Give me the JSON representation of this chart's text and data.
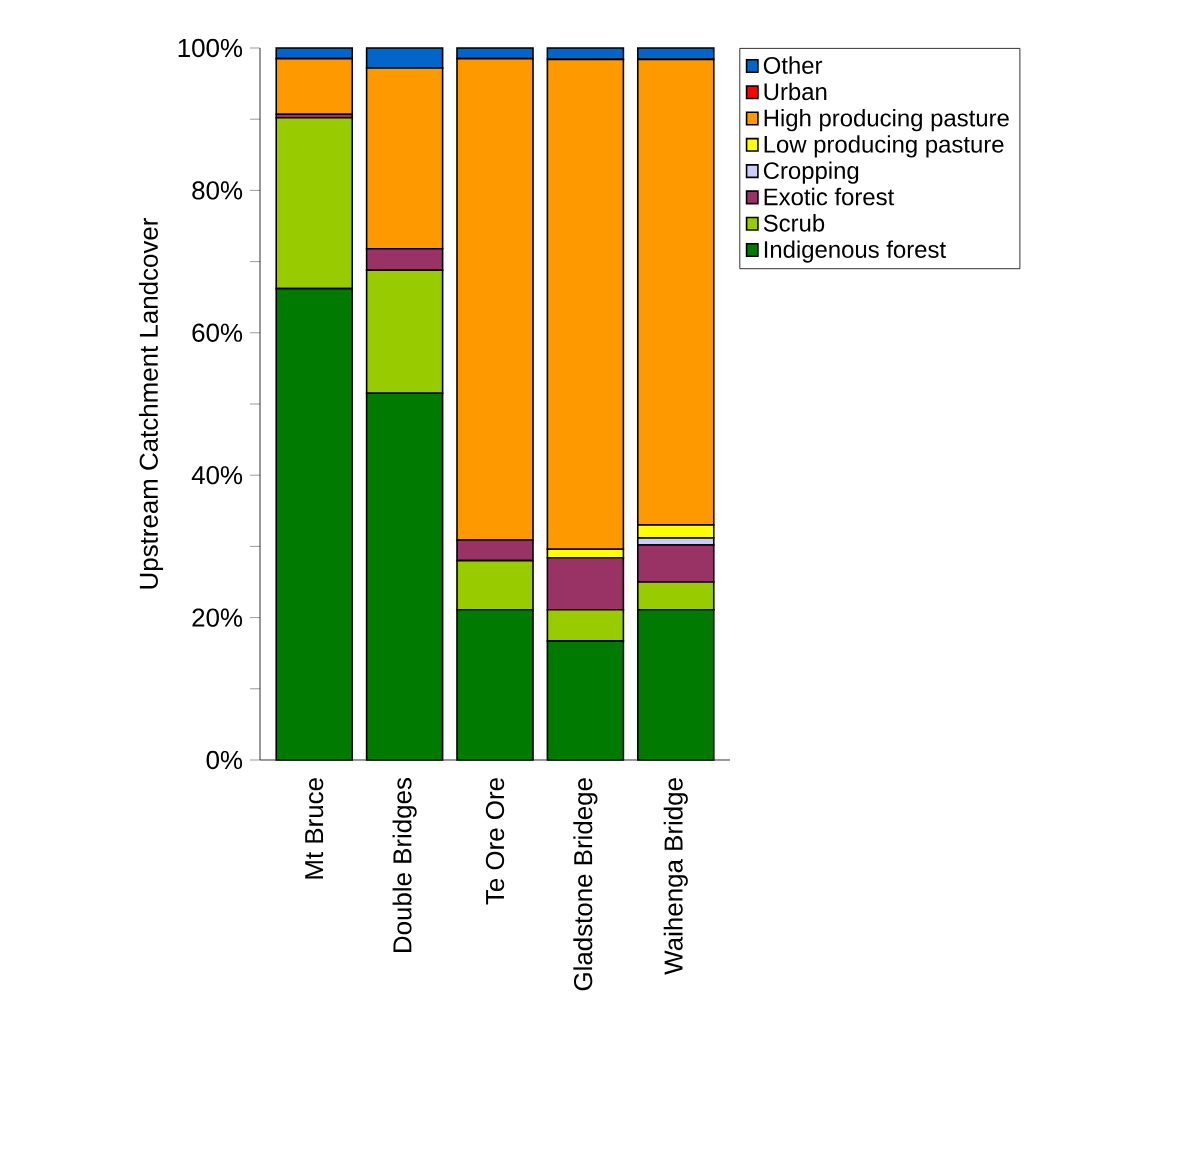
{
  "chart_data": {
    "type": "bar",
    "stacked": true,
    "ylabel": "Upstream Catchment Landcover",
    "categories": [
      "Mt Bruce",
      "Double Bridges",
      "Te Ore Ore",
      "Gladstone Bridege",
      "Waihenga Bridge"
    ],
    "series": [
      {
        "name": "Indigenous forest",
        "color": "#007a00",
        "values": [
          66.2,
          51.5,
          21.1,
          16.7,
          21.1
        ]
      },
      {
        "name": "Scrub",
        "color": "#99cc00",
        "values": [
          24.0,
          17.3,
          6.9,
          4.4,
          3.9
        ]
      },
      {
        "name": "Exotic forest",
        "color": "#993366",
        "values": [
          0.5,
          3.0,
          2.9,
          7.3,
          5.2
        ]
      },
      {
        "name": "Cropping",
        "color": "#ccccff",
        "values": [
          0,
          0,
          0,
          0,
          1.0
        ]
      },
      {
        "name": "Low producing pasture",
        "color": "#ffff00",
        "values": [
          0,
          0,
          0,
          1.2,
          1.8
        ]
      },
      {
        "name": "High producing pasture",
        "color": "#ff9900",
        "values": [
          7.8,
          25.4,
          67.6,
          68.8,
          65.4
        ]
      },
      {
        "name": "Urban",
        "color": "#ff0000",
        "values": [
          0,
          0,
          0,
          0,
          0
        ]
      },
      {
        "name": "Other",
        "color": "#0066cc",
        "values": [
          1.5,
          2.8,
          1.5,
          1.6,
          1.6
        ]
      }
    ],
    "ylim": [
      0,
      100
    ],
    "yticks": [
      {
        "value": 0,
        "label": "0%"
      },
      {
        "value": 10,
        "label": null
      },
      {
        "value": 20,
        "label": "20%"
      },
      {
        "value": 30,
        "label": null
      },
      {
        "value": 40,
        "label": "40%"
      },
      {
        "value": 50,
        "label": null
      },
      {
        "value": 60,
        "label": "60%"
      },
      {
        "value": 70,
        "label": null
      },
      {
        "value": 80,
        "label": "80%"
      },
      {
        "value": 90,
        "label": null
      },
      {
        "value": 100,
        "label": "100%"
      }
    ],
    "legend": "top right"
  }
}
